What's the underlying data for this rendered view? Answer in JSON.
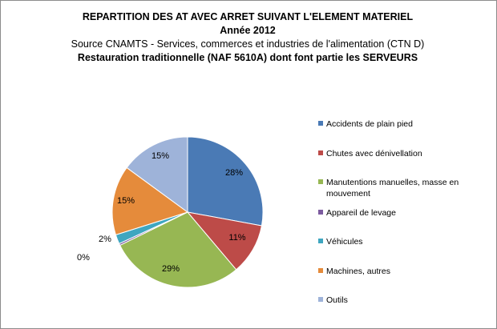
{
  "chart_data": {
    "type": "pie",
    "title": "REPARTITION DES AT AVEC ARRET SUIVANT L'ELEMENT MATERIEL",
    "subtitle_lines": [
      "Année 2012",
      "Source CNAMTS -  Services, commerces et industries de l'alimentation (CTN D)",
      "Restauration traditionnelle (NAF 5610A) dont font partie les SERVEURS"
    ],
    "categories": [
      "Accidents de plain pied",
      "Chutes avec dénivellation",
      "Manutentions manuelles, masse en mouvement",
      "Appareil de levage",
      "Véhicules",
      "Machines, autres",
      "Outils"
    ],
    "values": [
      28,
      11,
      29,
      0.4,
      2,
      15,
      15
    ],
    "data_labels": [
      "28%",
      "11%",
      "29%",
      "0%",
      "2%",
      "15%",
      "15%"
    ],
    "colors": [
      "#4a7ab5",
      "#bd4b48",
      "#97b753",
      "#7c5b9f",
      "#3ea6c0",
      "#e58b3b",
      "#9eb3d9"
    ],
    "legend_position": "right"
  }
}
